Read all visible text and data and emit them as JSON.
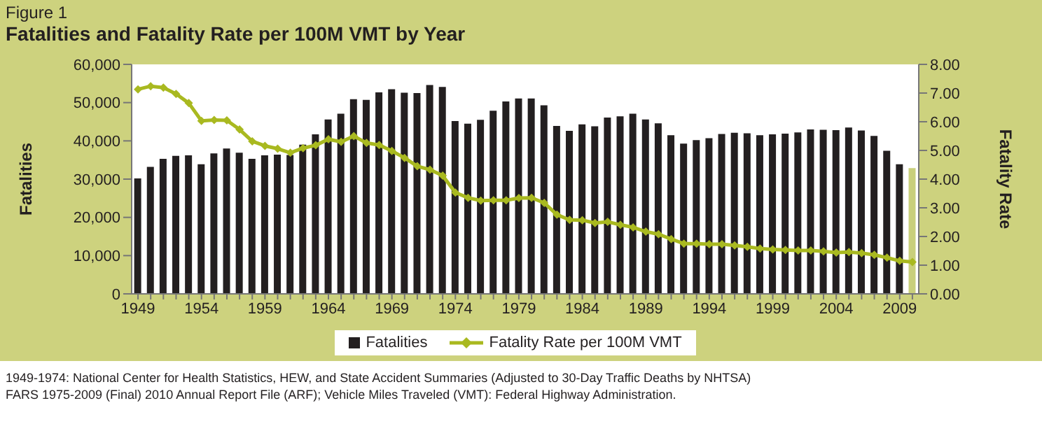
{
  "chart_data": {
    "type": "bar",
    "title": "Fatalities and Fatality Rate per 100M VMT by Year",
    "subtitle": "Figure 1",
    "ylabel": "Fatalities",
    "y2label": "Fatality Rate",
    "categories": [
      "1949",
      null,
      null,
      null,
      null,
      "1954",
      null,
      null,
      null,
      null,
      "1959",
      null,
      null,
      null,
      null,
      "1964",
      null,
      null,
      null,
      null,
      "1969",
      null,
      null,
      null,
      null,
      "1974",
      null,
      null,
      null,
      null,
      "1979",
      null,
      null,
      null,
      null,
      "1984",
      null,
      null,
      null,
      null,
      "1989",
      null,
      null,
      null,
      null,
      "1994",
      null,
      null,
      null,
      null,
      "1999",
      null,
      null,
      null,
      null,
      "2004",
      null,
      null,
      null,
      null,
      "2009",
      null
    ],
    "series": [
      {
        "name": "Fatalities",
        "color": "#231f20",
        "colors": [
          "#231f20",
          "#231f20",
          "#231f20",
          "#231f20",
          "#231f20",
          "#231f20",
          "#231f20",
          "#231f20",
          "#231f20",
          "#231f20",
          "#231f20",
          "#231f20",
          "#231f20",
          "#231f20",
          "#231f20",
          "#231f20",
          "#231f20",
          "#231f20",
          "#231f20",
          "#231f20",
          "#231f20",
          "#231f20",
          "#231f20",
          "#231f20",
          "#231f20",
          "#231f20",
          "#231f20",
          "#231f20",
          "#231f20",
          "#231f20",
          "#231f20",
          "#231f20",
          "#231f20",
          "#231f20",
          "#231f20",
          "#231f20",
          "#231f20",
          "#231f20",
          "#231f20",
          "#231f20",
          "#231f20",
          "#231f20",
          "#231f20",
          "#231f20",
          "#231f20",
          "#231f20",
          "#231f20",
          "#231f20",
          "#231f20",
          "#231f20",
          "#231f20",
          "#231f20",
          "#231f20",
          "#231f20",
          "#231f20",
          "#231f20",
          "#231f20",
          "#231f20",
          "#231f20",
          "#231f20",
          "#231f20",
          "#c9cf7c"
        ],
        "values": [
          30200,
          33200,
          35300,
          36100,
          36200,
          33900,
          36700,
          38000,
          36900,
          35300,
          36200,
          36400,
          36300,
          39000,
          41700,
          45600,
          47100,
          50900,
          50700,
          52700,
          53500,
          52600,
          52500,
          54600,
          54100,
          45200,
          44500,
          45500,
          47900,
          50300,
          51100,
          51100,
          49300,
          43900,
          42600,
          44300,
          43800,
          46100,
          46400,
          47100,
          45600,
          44600,
          41500,
          39300,
          40200,
          40700,
          41800,
          42100,
          42000,
          41500,
          41700,
          41900,
          42200,
          43000,
          42900,
          42800,
          43500,
          42700,
          41300,
          37400,
          33900,
          32900
        ]
      },
      {
        "name": "Fatality Rate per 100M VMT",
        "type": "line",
        "axis": "y2",
        "color": "#a9b920",
        "values": [
          7.13,
          7.24,
          7.19,
          6.97,
          6.65,
          6.03,
          6.06,
          6.05,
          5.73,
          5.32,
          5.16,
          5.06,
          4.92,
          5.08,
          5.18,
          5.39,
          5.3,
          5.5,
          5.26,
          5.19,
          4.98,
          4.74,
          4.45,
          4.33,
          4.12,
          3.53,
          3.35,
          3.25,
          3.26,
          3.26,
          3.34,
          3.35,
          3.17,
          2.76,
          2.58,
          2.57,
          2.47,
          2.51,
          2.41,
          2.32,
          2.17,
          2.08,
          1.91,
          1.75,
          1.75,
          1.73,
          1.73,
          1.69,
          1.64,
          1.58,
          1.55,
          1.53,
          1.51,
          1.51,
          1.48,
          1.44,
          1.46,
          1.42,
          1.36,
          1.26,
          1.15,
          1.11
        ]
      }
    ],
    "ylim": [
      0,
      60000
    ],
    "yticks": [
      0,
      {
        "value": 10000,
        "label": "10,000"
      },
      {
        "value": 20000,
        "label": "20,000"
      },
      {
        "value": 30000,
        "label": "30,000"
      },
      {
        "value": 40000,
        "label": "40,000"
      },
      {
        "value": 50000,
        "label": "50,000"
      },
      {
        "value": 60000,
        "label": "60,000"
      }
    ],
    "y2lim": [
      0,
      8
    ],
    "y2ticks": [
      {
        "value": 0,
        "label": "0.00"
      },
      {
        "value": 1,
        "label": "1.00"
      },
      {
        "value": 2,
        "label": "2.00"
      },
      {
        "value": 3,
        "label": "3.00"
      },
      {
        "value": 4,
        "label": "4.00"
      },
      {
        "value": 5,
        "label": "5.00"
      },
      {
        "value": 6,
        "label": "6.00"
      },
      {
        "value": 7,
        "label": "7.00"
      },
      {
        "value": 8,
        "label": "8.00"
      }
    ],
    "grid": false,
    "legend": "bottom",
    "marker": "diamond",
    "line_style": "solid",
    "annotations": [
      "1949-1974: National Center for Health Statistics, HEW, and State Accident Summaries (Adjusted to 30-Day Traffic Deaths by NHTSA)",
      "FARS 1975-2009 (Final) 2010 Annual Report File (ARF); Vehicle Miles Traveled (VMT): Federal Highway Administration."
    ]
  }
}
